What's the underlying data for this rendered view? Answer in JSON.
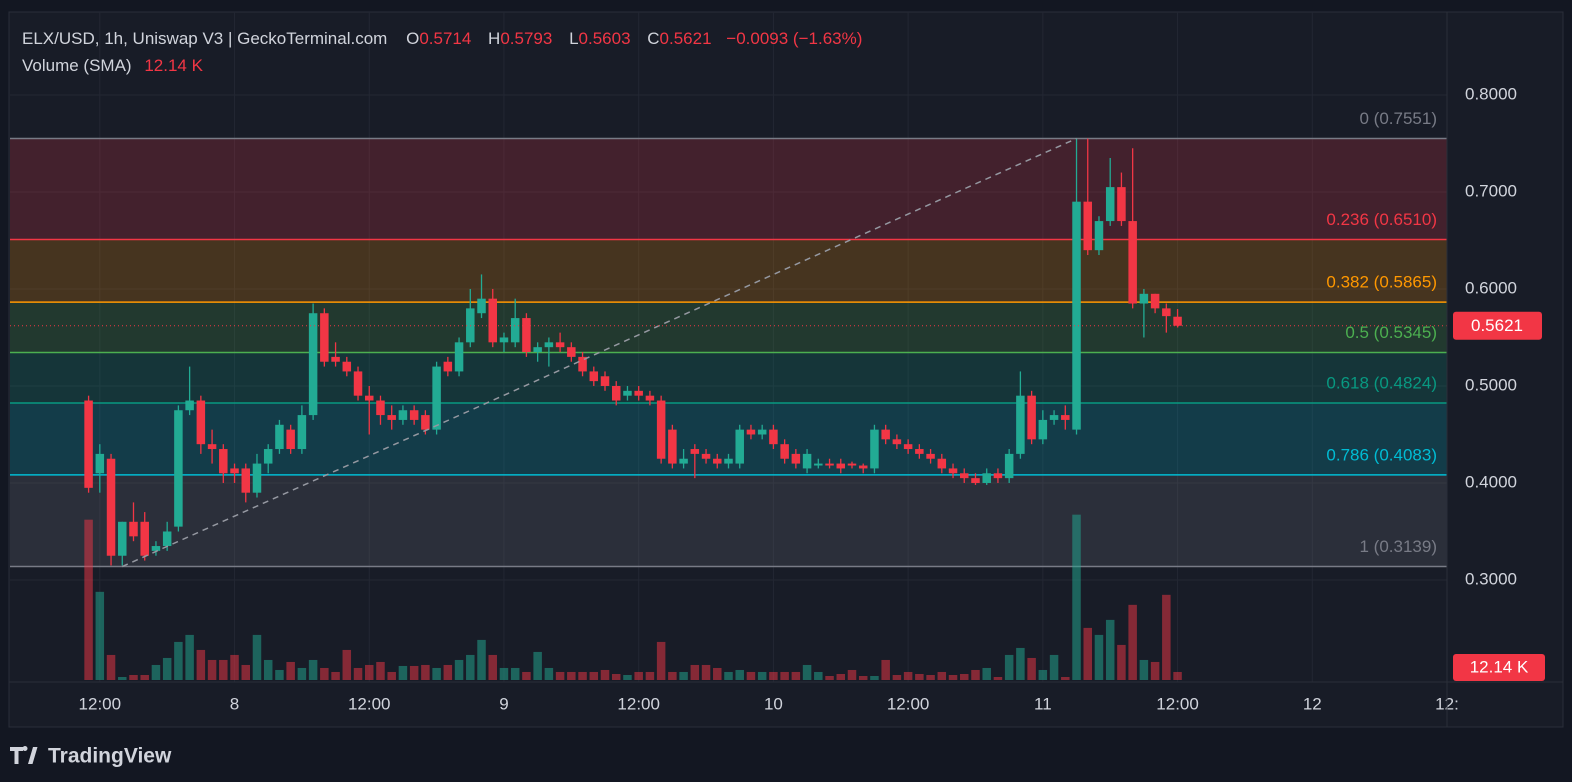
{
  "chart_data": {
    "type": "candlestick",
    "header": {
      "symbol": "ELX/USD, 1h, Uniswap V3 | GeckoTerminal.com",
      "ohlc": [
        {
          "label": "O",
          "value": 0.5714
        },
        {
          "label": "H",
          "value": 0.5793
        },
        {
          "label": "L",
          "value": 0.5603
        },
        {
          "label": "C",
          "value": 0.5621
        }
      ],
      "change": "−0.0093 (−1.63%)",
      "volume_label": "Volume (SMA)",
      "volume_value": "12.14 K"
    },
    "brand": "TradingView",
    "up_color": "#22ab94",
    "down_color": "#f23645",
    "xlim": [
      4,
      132
    ],
    "xticks": [
      {
        "value": 12,
        "label": "12:00"
      },
      {
        "value": 24,
        "label": "8"
      },
      {
        "value": 36,
        "label": "12:00"
      },
      {
        "value": 48,
        "label": "9"
      },
      {
        "value": 60,
        "label": "12:00"
      },
      {
        "value": 72,
        "label": "10"
      },
      {
        "value": 84,
        "label": "12:00"
      },
      {
        "value": 96,
        "label": "11"
      },
      {
        "value": 108,
        "label": "12:00"
      },
      {
        "value": 120,
        "label": "12"
      },
      {
        "value": 132,
        "label": "12:"
      }
    ],
    "ylim": [
      0.2,
      0.885
    ],
    "yticks": [
      {
        "value": 0.3,
        "label": "0.3000"
      },
      {
        "value": 0.4,
        "label": "0.4000"
      },
      {
        "value": 0.5,
        "label": "0.5000"
      },
      {
        "value": 0.6,
        "label": "0.6000"
      },
      {
        "value": 0.7,
        "label": "0.7000"
      },
      {
        "value": 0.8,
        "label": "0.8000"
      }
    ],
    "grid": true,
    "last_price": 0.5621,
    "fib_levels": [
      {
        "label": "0 (0.7551)",
        "value": 0.7551,
        "color": "#787b86"
      },
      {
        "label": "0.236 (0.6510)",
        "value": 0.651,
        "color": "#f23645"
      },
      {
        "label": "0.382 (0.5865)",
        "value": 0.5865,
        "color": "#ff9800"
      },
      {
        "label": "0.5 (0.5345)",
        "value": 0.5345,
        "color": "#4caf50"
      },
      {
        "label": "0.618 (0.4824)",
        "value": 0.4824,
        "color": "#089981"
      },
      {
        "label": "0.786 (0.4083)",
        "value": 0.4083,
        "color": "#00bcd4"
      },
      {
        "label": "1 (0.3139)",
        "value": 0.3139,
        "color": "#787b86"
      }
    ],
    "trend_line": {
      "x": [
        14,
        99
      ],
      "y": [
        0.3139,
        0.7551
      ]
    },
    "vlim": [
      0,
      100
    ],
    "candles": {
      "x": [
        11,
        12,
        13,
        14,
        15,
        16,
        17,
        18,
        19,
        20,
        21,
        22,
        23,
        24,
        25,
        26,
        27,
        28,
        29,
        30,
        31,
        32,
        33,
        34,
        35,
        36,
        37,
        38,
        39,
        40,
        41,
        42,
        43,
        44,
        45,
        46,
        47,
        48,
        49,
        50,
        51,
        52,
        53,
        54,
        55,
        56,
        57,
        58,
        59,
        60,
        61,
        62,
        63,
        64,
        65,
        66,
        67,
        68,
        69,
        70,
        71,
        72,
        73,
        74,
        75,
        76,
        77,
        78,
        79,
        80,
        81,
        82,
        83,
        84,
        85,
        86,
        87,
        88,
        89,
        90,
        91,
        92,
        93,
        94,
        95,
        96,
        97,
        98,
        99,
        100,
        101,
        102,
        103,
        104,
        105,
        106,
        107,
        108
      ],
      "open": [
        0.485,
        0.41,
        0.425,
        0.325,
        0.36,
        0.36,
        0.33,
        0.335,
        0.355,
        0.475,
        0.485,
        0.44,
        0.435,
        0.415,
        0.415,
        0.39,
        0.42,
        0.435,
        0.455,
        0.435,
        0.47,
        0.575,
        0.53,
        0.525,
        0.515,
        0.49,
        0.485,
        0.47,
        0.465,
        0.475,
        0.47,
        0.455,
        0.525,
        0.515,
        0.545,
        0.575,
        0.59,
        0.545,
        0.545,
        0.57,
        0.535,
        0.54,
        0.545,
        0.54,
        0.53,
        0.515,
        0.51,
        0.5,
        0.49,
        0.495,
        0.49,
        0.485,
        0.455,
        0.42,
        0.435,
        0.43,
        0.425,
        0.42,
        0.42,
        0.455,
        0.45,
        0.455,
        0.44,
        0.43,
        0.415,
        0.418,
        0.42,
        0.42,
        0.42,
        0.418,
        0.415,
        0.455,
        0.445,
        0.44,
        0.435,
        0.43,
        0.425,
        0.415,
        0.41,
        0.405,
        0.4,
        0.41,
        0.405,
        0.43,
        0.49,
        0.445,
        0.465,
        0.47,
        0.455,
        0.69,
        0.64,
        0.67,
        0.705,
        0.67,
        0.585,
        0.595,
        0.58,
        0.5714
      ],
      "high": [
        0.49,
        0.44,
        0.43,
        0.36,
        0.38,
        0.37,
        0.34,
        0.36,
        0.48,
        0.52,
        0.49,
        0.455,
        0.44,
        0.42,
        0.42,
        0.43,
        0.44,
        0.465,
        0.46,
        0.48,
        0.585,
        0.58,
        0.545,
        0.53,
        0.52,
        0.5,
        0.49,
        0.48,
        0.48,
        0.48,
        0.475,
        0.525,
        0.53,
        0.55,
        0.6,
        0.615,
        0.6,
        0.555,
        0.59,
        0.575,
        0.545,
        0.55,
        0.555,
        0.545,
        0.535,
        0.52,
        0.515,
        0.505,
        0.5,
        0.5,
        0.495,
        0.49,
        0.46,
        0.435,
        0.44,
        0.435,
        0.43,
        0.43,
        0.46,
        0.46,
        0.46,
        0.46,
        0.445,
        0.435,
        0.435,
        0.425,
        0.425,
        0.425,
        0.422,
        0.42,
        0.46,
        0.46,
        0.45,
        0.445,
        0.44,
        0.435,
        0.43,
        0.42,
        0.415,
        0.41,
        0.415,
        0.415,
        0.435,
        0.515,
        0.495,
        0.475,
        0.475,
        0.48,
        0.755,
        0.755,
        0.675,
        0.735,
        0.72,
        0.745,
        0.6,
        0.595,
        0.585,
        0.5793
      ],
      "low": [
        0.39,
        0.39,
        0.315,
        0.315,
        0.34,
        0.32,
        0.325,
        0.33,
        0.35,
        0.47,
        0.43,
        0.42,
        0.4,
        0.4,
        0.38,
        0.385,
        0.41,
        0.43,
        0.43,
        0.43,
        0.465,
        0.52,
        0.52,
        0.51,
        0.485,
        0.45,
        0.46,
        0.455,
        0.46,
        0.46,
        0.45,
        0.45,
        0.51,
        0.51,
        0.54,
        0.57,
        0.54,
        0.535,
        0.54,
        0.53,
        0.525,
        0.52,
        0.535,
        0.525,
        0.51,
        0.5,
        0.495,
        0.48,
        0.485,
        0.485,
        0.48,
        0.42,
        0.415,
        0.415,
        0.405,
        0.42,
        0.415,
        0.415,
        0.415,
        0.445,
        0.445,
        0.435,
        0.42,
        0.415,
        0.41,
        0.415,
        0.415,
        0.41,
        0.415,
        0.41,
        0.41,
        0.44,
        0.435,
        0.43,
        0.425,
        0.42,
        0.41,
        0.405,
        0.4,
        0.398,
        0.398,
        0.4,
        0.4,
        0.425,
        0.44,
        0.44,
        0.46,
        0.455,
        0.45,
        0.635,
        0.635,
        0.665,
        0.665,
        0.58,
        0.55,
        0.575,
        0.555,
        0.5603
      ],
      "close": [
        0.395,
        0.43,
        0.325,
        0.36,
        0.345,
        0.325,
        0.335,
        0.35,
        0.475,
        0.485,
        0.44,
        0.435,
        0.41,
        0.41,
        0.39,
        0.42,
        0.435,
        0.46,
        0.435,
        0.47,
        0.575,
        0.525,
        0.525,
        0.515,
        0.49,
        0.485,
        0.47,
        0.465,
        0.475,
        0.465,
        0.455,
        0.52,
        0.515,
        0.545,
        0.58,
        0.59,
        0.545,
        0.55,
        0.57,
        0.535,
        0.54,
        0.545,
        0.54,
        0.53,
        0.515,
        0.505,
        0.5,
        0.485,
        0.495,
        0.49,
        0.485,
        0.425,
        0.42,
        0.425,
        0.43,
        0.425,
        0.42,
        0.425,
        0.455,
        0.45,
        0.455,
        0.44,
        0.425,
        0.42,
        0.43,
        0.42,
        0.418,
        0.415,
        0.418,
        0.415,
        0.455,
        0.445,
        0.44,
        0.435,
        0.43,
        0.425,
        0.415,
        0.41,
        0.405,
        0.4,
        0.41,
        0.405,
        0.43,
        0.49,
        0.445,
        0.465,
        0.47,
        0.465,
        0.69,
        0.64,
        0.67,
        0.705,
        0.67,
        0.585,
        0.595,
        0.58,
        0.572,
        0.5621
      ],
      "volume": [
        96,
        52.8,
        15,
        1.8,
        3,
        3,
        9,
        13.2,
        22.8,
        27,
        18,
        12,
        12,
        15,
        9,
        27,
        12,
        6,
        10.8,
        7.2,
        12,
        7.2,
        4.8,
        18,
        7.2,
        9,
        10.8,
        4.8,
        8.4,
        8.4,
        9,
        7.2,
        9,
        12,
        15,
        24,
        15,
        7.2,
        7.2,
        4.8,
        16.8,
        7.2,
        4.8,
        4.8,
        4.8,
        4.8,
        6,
        3.6,
        3,
        4.8,
        4.8,
        22.8,
        4.8,
        4.8,
        9,
        9,
        7.2,
        4.8,
        6,
        4.8,
        4.8,
        4.8,
        4.8,
        4.8,
        9,
        4.8,
        2.4,
        3.6,
        6,
        2.4,
        2.4,
        12,
        3,
        4.8,
        3.6,
        3,
        4.8,
        3,
        3.6,
        6,
        7.2,
        1.8,
        15,
        19.2,
        13.2,
        6,
        15,
        1.8,
        99,
        31.2,
        27,
        36,
        21,
        45,
        12,
        10.8,
        51,
        4.8
      ]
    }
  }
}
